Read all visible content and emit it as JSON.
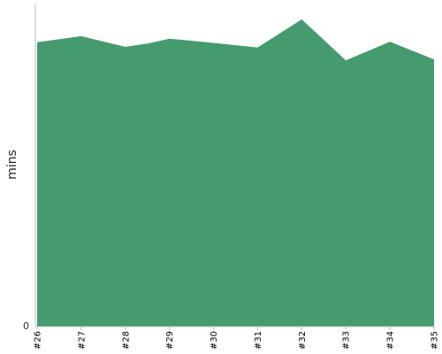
{
  "chart_data": {
    "type": "area",
    "title": "",
    "xlabel": "",
    "ylabel": "mins",
    "categories": [
      "#26",
      "#27",
      "#28",
      "#29",
      "#30",
      "#31",
      "#32",
      "#33",
      "#34",
      "#35"
    ],
    "x": [
      26,
      27,
      28,
      28.5,
      29,
      29.5,
      30,
      30.5,
      31,
      32,
      33,
      34,
      35
    ],
    "values": [
      88.0,
      89.9,
      86.6,
      87.6,
      89.1,
      88.5,
      87.8,
      87.1,
      86.4,
      95.1,
      82.4,
      88.2,
      82.7
    ],
    "ylim": [
      0,
      100
    ],
    "yticks": [
      0
    ],
    "ytick_labels": [
      "0"
    ],
    "grid": false,
    "legend": "none",
    "fill_color": "#459b6d",
    "axis_color": "#bbbbbb"
  }
}
